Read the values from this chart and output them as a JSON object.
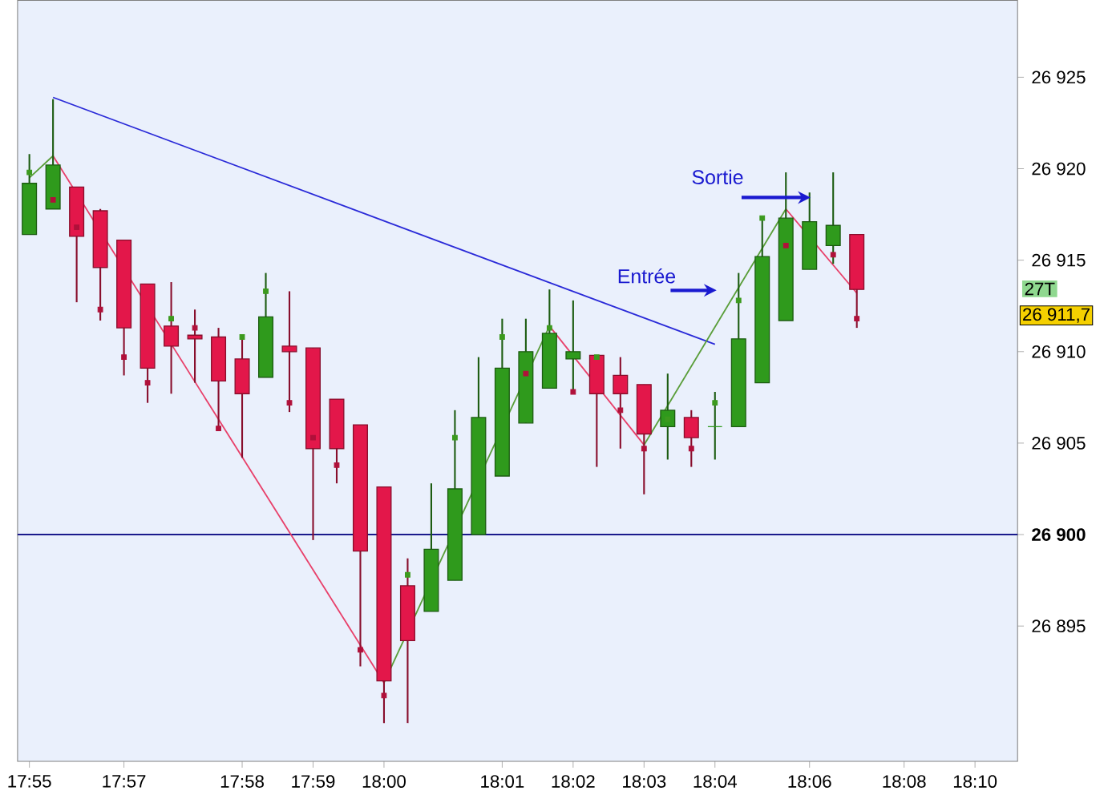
{
  "chart_data": {
    "type": "candlestick",
    "categories": [
      "17:55",
      null,
      null,
      null,
      "17:57",
      null,
      null,
      null,
      null,
      "17:58",
      null,
      null,
      "17:59",
      null,
      null,
      "18:00",
      null,
      null,
      null,
      null,
      "18:01",
      null,
      null,
      "18:02",
      null,
      null,
      "18:03",
      null,
      null,
      "18:04",
      null,
      null,
      null,
      "18:06",
      null,
      null,
      null,
      "18:08",
      null,
      null,
      "18:10",
      null
    ],
    "ohlc": [
      [
        26916.4,
        26920.8,
        26916.4,
        26919.2
      ],
      [
        26917.8,
        26923.8,
        26917.8,
        26920.2
      ],
      [
        26919.0,
        26919.0,
        26912.7,
        26916.3
      ],
      [
        26917.7,
        26917.8,
        26911.7,
        26914.6
      ],
      [
        26916.1,
        26916.1,
        26908.7,
        26911.3
      ],
      [
        26913.7,
        26913.7,
        26907.2,
        26909.1
      ],
      [
        26911.4,
        26913.8,
        26907.7,
        26910.3
      ],
      [
        26910.9,
        26912.3,
        26908.3,
        26910.7
      ],
      [
        26910.8,
        26911.3,
        26905.8,
        26908.4
      ],
      [
        26909.6,
        26910.8,
        26904.2,
        26907.7
      ],
      [
        26908.6,
        26914.3,
        26908.6,
        26911.9
      ],
      [
        26910.3,
        26913.3,
        26906.7,
        26910.0
      ],
      [
        26910.2,
        26910.2,
        26899.7,
        26904.7
      ],
      [
        26907.4,
        26907.4,
        26902.8,
        26904.7
      ],
      [
        26906.0,
        26906.0,
        26892.8,
        26899.1
      ],
      [
        26902.6,
        26902.6,
        26889.7,
        26892.0
      ],
      [
        26897.2,
        26898.7,
        26889.7,
        26894.2
      ],
      [
        26895.8,
        26902.8,
        26895.8,
        26899.2
      ],
      [
        26897.5,
        26906.8,
        26897.5,
        26902.5
      ],
      [
        26900.0,
        26909.7,
        26900.0,
        26906.4
      ],
      [
        26903.2,
        26911.8,
        26903.2,
        26909.1
      ],
      [
        26906.1,
        26911.8,
        26906.1,
        26910.0
      ],
      [
        26908.0,
        26913.4,
        26908.0,
        26911.0
      ],
      [
        26909.6,
        26912.8,
        26907.8,
        26910.0
      ],
      [
        26909.8,
        26909.8,
        26903.7,
        26907.7
      ],
      [
        26908.7,
        26909.7,
        26904.7,
        26907.7
      ],
      [
        26908.2,
        26908.2,
        26902.2,
        26905.5
      ],
      [
        26905.9,
        26908.8,
        26904.1,
        26906.8
      ],
      [
        26906.4,
        26906.8,
        26903.7,
        26905.3
      ],
      [
        26905.9,
        26907.8,
        26904.1,
        26905.9
      ],
      [
        26905.9,
        26914.3,
        26905.9,
        26910.7
      ],
      [
        26908.3,
        26917.3,
        26908.3,
        26915.2
      ],
      [
        26911.7,
        26919.8,
        26911.7,
        26917.3
      ],
      [
        26914.5,
        26918.7,
        26914.5,
        26917.1
      ],
      [
        26915.8,
        26919.8,
        26914.8,
        26916.9
      ],
      [
        26916.4,
        26916.4,
        26911.3,
        26913.4
      ],
      null,
      null,
      null,
      null,
      null,
      null
    ],
    "colors": [
      "#2f9a1c",
      "#2f9a1c",
      "#e3174a",
      "#e3174a",
      "#e3174a",
      "#e3174a",
      "#e3174a",
      "#e3174a",
      "#e3174a",
      "#e3174a",
      "#2f9a1c",
      "#e3174a",
      "#e3174a",
      "#e3174a",
      "#e3174a",
      "#e3174a",
      "#e3174a",
      "#2f9a1c",
      "#2f9a1c",
      "#2f9a1c",
      "#2f9a1c",
      "#2f9a1c",
      "#2f9a1c",
      "#2f9a1c",
      "#e3174a",
      "#e3174a",
      "#e3174a",
      "#2f9a1c",
      "#e3174a",
      "#2f9a1c",
      "#2f9a1c",
      "#2f9a1c",
      "#2f9a1c",
      "#2f9a1c",
      "#2f9a1c",
      "#e3174a",
      null,
      null,
      null,
      null,
      null,
      null
    ],
    "series": [
      {
        "type": "line",
        "color": "#2a2ad8",
        "values": [
          null,
          26923.9,
          null,
          null,
          null,
          null,
          null,
          null,
          null,
          null,
          null,
          null,
          null,
          null,
          null,
          null,
          null,
          null,
          null,
          null,
          null,
          null,
          null,
          null,
          null,
          null,
          null,
          null,
          null,
          26910.4,
          null,
          null,
          null,
          null,
          null,
          null,
          null,
          null,
          null,
          null,
          null,
          null
        ]
      },
      {
        "type": "line",
        "color": "#5a9e3a",
        "values": [
          26919.5,
          26920.7,
          null,
          null,
          null,
          null,
          null,
          null,
          null,
          null,
          null,
          null,
          null,
          null,
          null,
          null,
          null,
          null,
          null,
          null,
          null,
          null,
          null,
          null,
          null,
          null,
          null,
          null,
          null,
          null,
          null,
          null,
          null,
          null,
          null,
          null,
          null,
          null,
          null,
          null,
          null,
          null
        ]
      },
      {
        "type": "line",
        "color": "#e8406a",
        "values": [
          null,
          26920.7,
          null,
          null,
          null,
          null,
          null,
          null,
          null,
          null,
          null,
          null,
          null,
          null,
          null,
          26891.9,
          null,
          null,
          null,
          null,
          null,
          null,
          null,
          null,
          null,
          null,
          null,
          null,
          null,
          null,
          null,
          null,
          null,
          null,
          null,
          null,
          null,
          null,
          null,
          null,
          null,
          null
        ]
      },
      {
        "type": "line",
        "color": "#5a9e3a",
        "values": [
          null,
          null,
          null,
          null,
          null,
          null,
          null,
          null,
          null,
          null,
          null,
          null,
          null,
          null,
          null,
          26891.9,
          null,
          null,
          null,
          null,
          null,
          null,
          26911.4,
          null,
          null,
          null,
          null,
          null,
          null,
          null,
          null,
          null,
          null,
          null,
          null,
          null,
          null,
          null,
          null,
          null,
          null,
          null
        ]
      },
      {
        "type": "line",
        "color": "#e8406a",
        "values": [
          null,
          null,
          null,
          null,
          null,
          null,
          null,
          null,
          null,
          null,
          null,
          null,
          null,
          null,
          null,
          null,
          null,
          null,
          null,
          null,
          null,
          null,
          26911.4,
          null,
          null,
          null,
          26904.9,
          null,
          null,
          null,
          null,
          null,
          null,
          null,
          null,
          null,
          null,
          null,
          null,
          null,
          null,
          null
        ]
      },
      {
        "type": "line",
        "color": "#5a9e3a",
        "values": [
          null,
          null,
          null,
          null,
          null,
          null,
          null,
          null,
          null,
          null,
          null,
          null,
          null,
          null,
          null,
          null,
          null,
          null,
          null,
          null,
          null,
          null,
          null,
          null,
          null,
          null,
          26904.9,
          null,
          null,
          null,
          null,
          null,
          26917.8,
          null,
          null,
          null,
          null,
          null,
          null,
          null,
          null,
          null
        ]
      },
      {
        "type": "line",
        "color": "#e8406a",
        "values": [
          null,
          null,
          null,
          null,
          null,
          null,
          null,
          null,
          null,
          null,
          null,
          null,
          null,
          null,
          null,
          null,
          null,
          null,
          null,
          null,
          null,
          null,
          null,
          null,
          null,
          null,
          null,
          null,
          null,
          null,
          null,
          null,
          26917.8,
          null,
          null,
          26913.2,
          null,
          null,
          null,
          null,
          null,
          null
        ]
      },
      {
        "type": "scatter",
        "marker": "square",
        "values": [
          26919.8,
          26918.3,
          26916.8,
          26912.3,
          26909.7,
          26908.3,
          26911.8,
          26911.3,
          26905.8,
          26910.8,
          26913.3,
          26907.2,
          26905.3,
          26903.8,
          26893.7,
          26891.2,
          26897.8,
          null,
          26905.3,
          null,
          26910.8,
          26908.8,
          26911.3,
          26907.8,
          26909.7,
          26906.8,
          26904.7,
          26906.3,
          26904.7,
          26907.2,
          26912.8,
          26917.3,
          26915.8,
          null,
          26915.3,
          26911.8,
          null,
          null,
          null,
          null,
          null,
          null
        ],
        "colors": [
          "#3c9a1e",
          "#b0103a",
          "#b0103a",
          "#b0103a",
          "#b0103a",
          "#b0103a",
          "#3c9a1e",
          "#b0103a",
          "#b0103a",
          "#3c9a1e",
          "#3c9a1e",
          "#b0103a",
          "#b0103a",
          "#b0103a",
          "#b0103a",
          "#b0103a",
          "#3c9a1e",
          null,
          "#3c9a1e",
          null,
          "#3c9a1e",
          "#b0103a",
          "#3c9a1e",
          "#b0103a",
          "#3c9a1e",
          "#b0103a",
          "#b0103a",
          "#3c9a1e",
          "#b0103a",
          "#3c9a1e",
          "#3c9a1e",
          "#3c9a1e",
          "#b0103a",
          null,
          "#b0103a",
          "#b0103a",
          null,
          null,
          null,
          null,
          null,
          null
        ]
      }
    ],
    "ylim": [
      26887.6,
      26929.2
    ],
    "yticks": [
      {
        "value": 26895,
        "label": "26 895"
      },
      {
        "value": 26900,
        "label": "26 900"
      },
      {
        "value": 26905,
        "label": "26 905"
      },
      {
        "value": 26910,
        "label": "26 910"
      },
      {
        "value": 26915,
        "label": "26 915"
      },
      {
        "value": 26920,
        "label": "26 920"
      },
      {
        "value": 26925,
        "label": "26 925"
      }
    ],
    "ref_lines": [
      {
        "axis": "y",
        "value": 26900,
        "color": "#1a1a8c"
      }
    ],
    "annotations": [
      "Entrée",
      "Sortie",
      "26 911,7",
      "27T"
    ],
    "grid": false
  }
}
